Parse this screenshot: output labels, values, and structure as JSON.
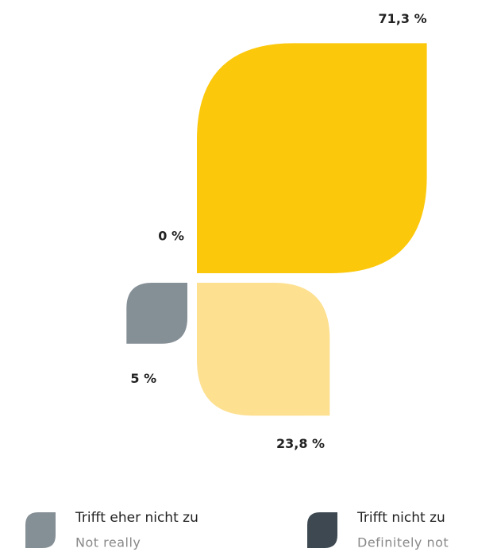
{
  "chart_data": {
    "type": "leaf-quadrant",
    "values": [
      71.3,
      23.8,
      5,
      0
    ],
    "value_labels": [
      "71,3 %",
      "23,8 %",
      "5 %",
      "0 %"
    ],
    "colors": [
      "#fcc80b",
      "#fde090",
      "#858f96",
      "#3d4850"
    ],
    "categories": [
      null,
      null,
      "Trifft eher nicht zu",
      "Trifft nicht zu"
    ],
    "subcategories": [
      null,
      null,
      "Not really",
      "Definitely not"
    ]
  }
}
